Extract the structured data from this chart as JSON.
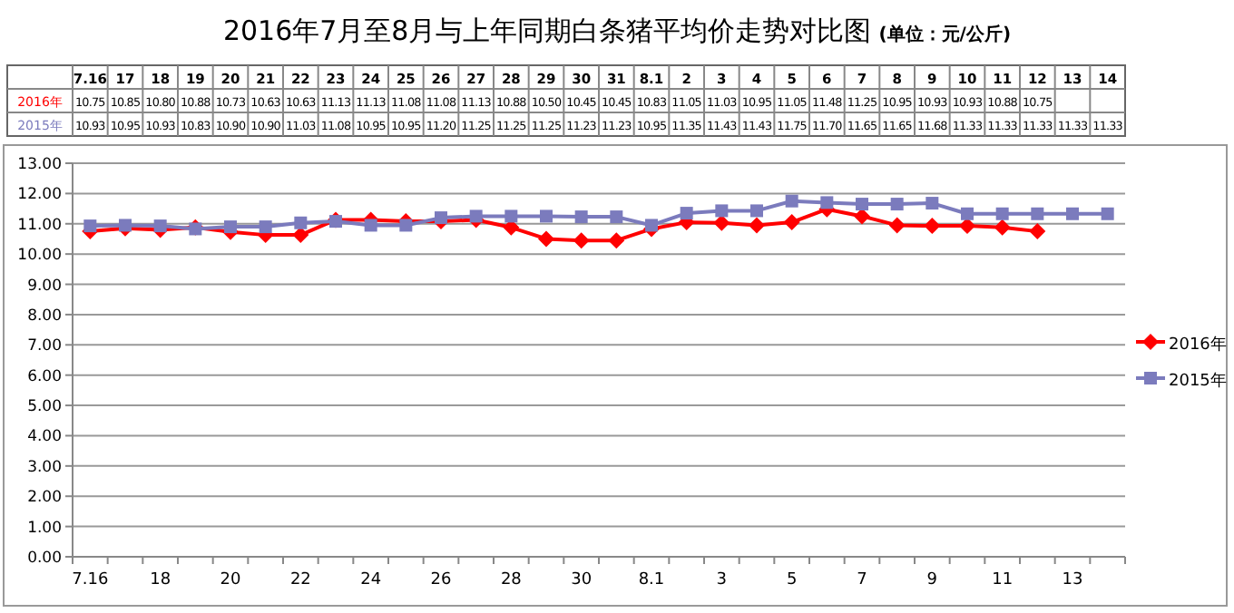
{
  "chart_data": {
    "type": "line",
    "title": "2016年7月至8月与上年同期白条猪平均价走势对比图",
    "subtitle": "(单位：元/公斤)",
    "categories": [
      "7.16",
      "17",
      "18",
      "19",
      "20",
      "21",
      "22",
      "23",
      "24",
      "25",
      "26",
      "27",
      "28",
      "29",
      "30",
      "31",
      "8.1",
      "2",
      "3",
      "4",
      "5",
      "6",
      "7",
      "8",
      "9",
      "10",
      "11",
      "12",
      "13",
      "14"
    ],
    "series": [
      {
        "name": "2016年",
        "color": "#ff0000",
        "marker": "diamond",
        "values": [
          10.75,
          10.85,
          10.8,
          10.88,
          10.73,
          10.63,
          10.63,
          11.13,
          11.13,
          11.08,
          11.08,
          11.13,
          10.88,
          10.5,
          10.45,
          10.45,
          10.83,
          11.05,
          11.03,
          10.95,
          11.05,
          11.48,
          11.25,
          10.95,
          10.93,
          10.93,
          10.88,
          10.75,
          null,
          null
        ],
        "value_labels": [
          "10.75",
          "10.85",
          "10.80",
          "10.88",
          "10.73",
          "10.63",
          "10.63",
          "11.13",
          "11.13",
          "11.08",
          "11.08",
          "11.13",
          "10.88",
          "10.50",
          "10.45",
          "10.45",
          "10.83",
          "11.05",
          "11.03",
          "10.95",
          "11.05",
          "11.48",
          "11.25",
          "10.95",
          "10.93",
          "10.93",
          "10.88",
          "10.75",
          null,
          null
        ]
      },
      {
        "name": "2015年",
        "color": "#7b7bbd",
        "marker": "square",
        "values": [
          10.93,
          10.95,
          10.93,
          10.83,
          10.9,
          10.9,
          11.03,
          11.08,
          10.95,
          10.95,
          11.2,
          11.25,
          11.25,
          11.25,
          11.23,
          11.23,
          10.95,
          11.35,
          11.43,
          11.43,
          11.75,
          11.7,
          11.65,
          11.65,
          11.68,
          11.33,
          11.33,
          11.33,
          11.33,
          11.33
        ],
        "value_labels": [
          "10.93",
          "10.95",
          "10.93",
          "10.83",
          "10.90",
          "10.90",
          "11.03",
          "11.08",
          "10.95",
          "10.95",
          "11.20",
          "11.25",
          "11.25",
          "11.25",
          "11.23",
          "11.23",
          "10.95",
          "11.35",
          "11.43",
          "11.43",
          "11.75",
          "11.70",
          "11.65",
          "11.65",
          "11.68",
          "11.33",
          "11.33",
          "11.33",
          "11.33",
          "11.33"
        ]
      }
    ],
    "ylim": [
      0,
      13
    ],
    "yticks": [
      {
        "value": 0,
        "label": "0.00"
      },
      {
        "value": 1,
        "label": "1.00"
      },
      {
        "value": 2,
        "label": "2.00"
      },
      {
        "value": 3,
        "label": "3.00"
      },
      {
        "value": 4,
        "label": "4.00"
      },
      {
        "value": 5,
        "label": "5.00"
      },
      {
        "value": 6,
        "label": "6.00"
      },
      {
        "value": 7,
        "label": "7.00"
      },
      {
        "value": 8,
        "label": "8.00"
      },
      {
        "value": 9,
        "label": "9.00"
      },
      {
        "value": 10,
        "label": "10.00"
      },
      {
        "value": 11,
        "label": "11.00"
      },
      {
        "value": 12,
        "label": "12.00"
      },
      {
        "value": 13,
        "label": "13.00"
      }
    ],
    "grid": "y",
    "legend": "right",
    "line_style": "solid"
  }
}
